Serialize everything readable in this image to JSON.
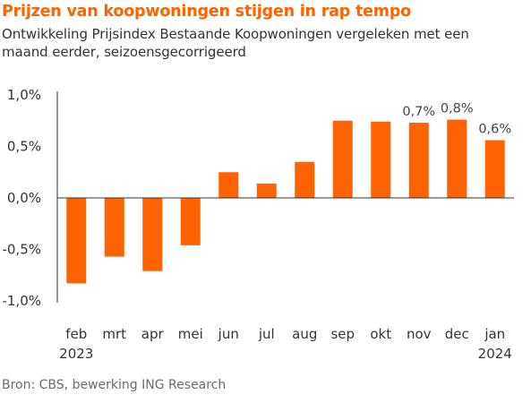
{
  "title": "Prijzen van koopwoningen stijgen in rap tempo",
  "subtitle": "Ontwikkeling Prijsindex Bestaande Koopwoningen vergeleken met een maand eerder, seizoensgecorrigeerd",
  "source": "Bron: CBS, bewerking ING Research",
  "bar_color": "#ff6200",
  "chart_data": {
    "type": "bar",
    "title": "Prijzen van koopwoningen stijgen in rap tempo",
    "subtitle": "Ontwikkeling Prijsindex Bestaande Koopwoningen vergeleken met een maand eerder, seizoensgecorrigeerd",
    "categories": [
      "feb",
      "mrt",
      "apr",
      "mei",
      "jun",
      "jul",
      "aug",
      "sep",
      "okt",
      "nov",
      "dec",
      "jan"
    ],
    "year_labels": [
      "2023",
      "",
      "",
      "",
      "",
      "",
      "",
      "",
      "",
      "",
      "",
      "2024"
    ],
    "values": [
      -0.83,
      -0.57,
      -0.71,
      -0.46,
      0.25,
      0.14,
      0.35,
      0.75,
      0.74,
      0.73,
      0.76,
      0.56
    ],
    "data_labels": [
      "",
      "",
      "",
      "",
      "",
      "",
      "",
      "",
      "",
      "0,7%",
      "0,8%",
      "0,6%"
    ],
    "y_ticks": [
      1.0,
      0.5,
      0.0,
      -0.5,
      -1.0
    ],
    "y_tick_labels": [
      "1,0%",
      "0,5%",
      "0,0%",
      "-0,5%",
      "-1,0%"
    ],
    "ylim": [
      -1.0,
      1.0
    ],
    "xlabel": "",
    "ylabel": "",
    "grid": false,
    "legend": "none"
  }
}
